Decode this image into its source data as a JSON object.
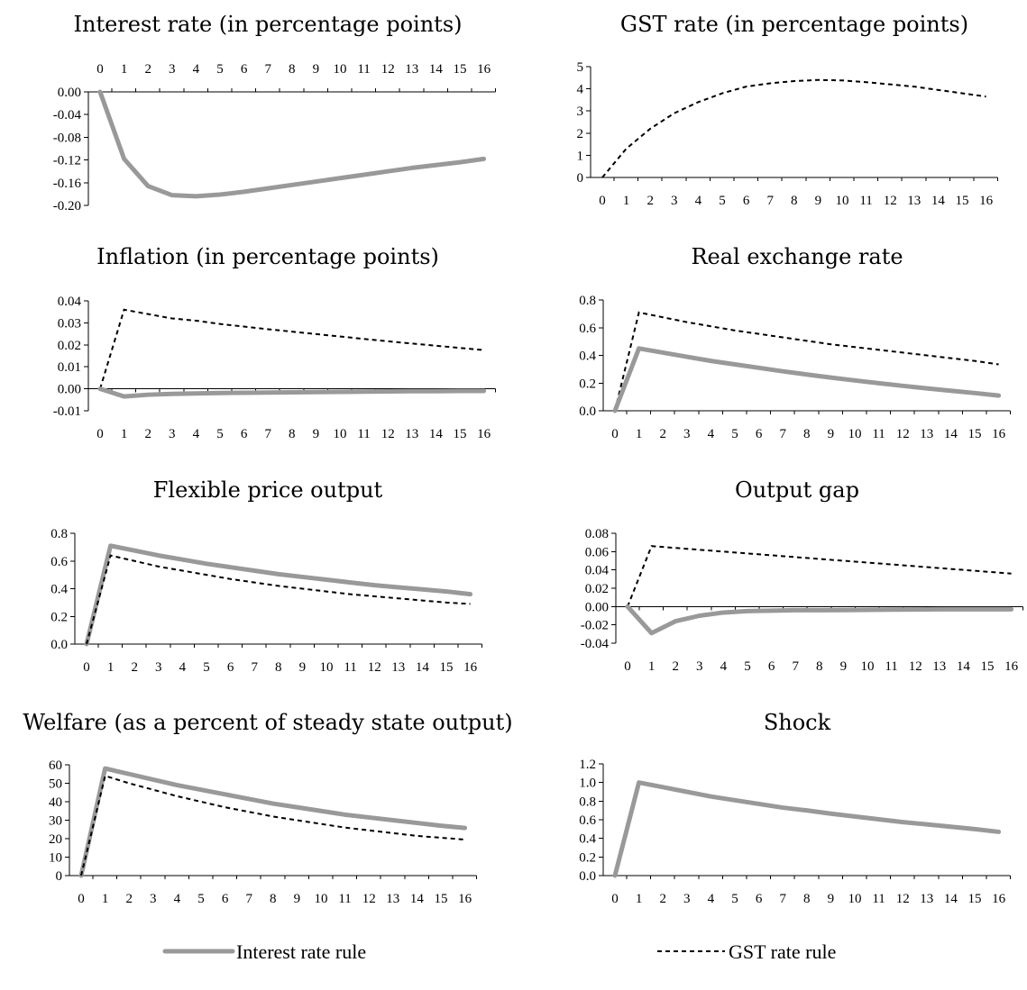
{
  "colors": {
    "interest_rate_rule": "#999999",
    "gst_rate_rule": "#000000"
  },
  "legend": [
    {
      "key": "interest",
      "label": "Interest rate rule",
      "style": "solid-gray"
    },
    {
      "key": "gst",
      "label": "GST rate rule",
      "style": "dashed-black"
    }
  ],
  "chart_data": [
    {
      "type": "line",
      "title": "Interest rate (in percentage points)",
      "x": [
        0,
        1,
        2,
        3,
        4,
        5,
        6,
        7,
        8,
        9,
        10,
        11,
        12,
        13,
        14,
        15,
        16
      ],
      "xlabel": "",
      "ylabel": "",
      "ylim": [
        -0.2,
        0.0
      ],
      "yticks": [
        "0.00",
        "-0.04",
        "-0.08",
        "-0.12",
        "-0.16",
        "-0.20"
      ],
      "xaxis_position": "top",
      "series": [
        {
          "key": "interest",
          "values": [
            0,
            -0.118,
            -0.166,
            -0.182,
            -0.184,
            -0.181,
            -0.176,
            -0.17,
            -0.164,
            -0.158,
            -0.152,
            -0.146,
            -0.14,
            -0.134,
            -0.129,
            -0.124,
            -0.118
          ]
        }
      ]
    },
    {
      "type": "line",
      "title": "GST rate (in percentage points)",
      "x": [
        0,
        1,
        2,
        3,
        4,
        5,
        6,
        7,
        8,
        9,
        10,
        11,
        12,
        13,
        14,
        15,
        16
      ],
      "xlabel": "",
      "ylabel": "",
      "ylim": [
        0,
        5
      ],
      "yticks": [
        "0",
        "1",
        "2",
        "3",
        "4",
        "5"
      ],
      "series": [
        {
          "key": "gst",
          "values": [
            0,
            1.3,
            2.2,
            2.9,
            3.4,
            3.8,
            4.1,
            4.25,
            4.35,
            4.4,
            4.38,
            4.3,
            4.2,
            4.1,
            3.95,
            3.8,
            3.65
          ]
        }
      ]
    },
    {
      "type": "line",
      "title": "Inflation (in percentage points)",
      "x": [
        0,
        1,
        2,
        3,
        4,
        5,
        6,
        7,
        8,
        9,
        10,
        11,
        12,
        13,
        14,
        15,
        16
      ],
      "xlabel": "",
      "ylabel": "",
      "ylim": [
        -0.01,
        0.04
      ],
      "yticks": [
        "0.04",
        "0.03",
        "0.02",
        "0.01",
        "0.00",
        "-0.01"
      ],
      "series": [
        {
          "key": "gst",
          "values": [
            0,
            0.036,
            0.034,
            0.032,
            0.031,
            0.0295,
            0.0283,
            0.0271,
            0.026,
            0.0249,
            0.0238,
            0.0227,
            0.0216,
            0.0206,
            0.0196,
            0.0186,
            0.0176
          ]
        },
        {
          "key": "interest",
          "values": [
            0,
            -0.0035,
            -0.0027,
            -0.0023,
            -0.0021,
            -0.0019,
            -0.0018,
            -0.0017,
            -0.0016,
            -0.0015,
            -0.0014,
            -0.0013,
            -0.0012,
            -0.0011,
            -0.0011,
            -0.001,
            -0.001
          ]
        }
      ]
    },
    {
      "type": "line",
      "title": "Real exchange rate",
      "x": [
        0,
        1,
        2,
        3,
        4,
        5,
        6,
        7,
        8,
        9,
        10,
        11,
        12,
        13,
        14,
        15,
        16
      ],
      "xlabel": "",
      "ylabel": "",
      "ylim": [
        0,
        0.8
      ],
      "yticks": [
        "0.8",
        "0.6",
        "0.4",
        "0.2",
        "0.0"
      ],
      "series": [
        {
          "key": "gst",
          "values": [
            0,
            0.71,
            0.675,
            0.64,
            0.61,
            0.58,
            0.555,
            0.53,
            0.505,
            0.48,
            0.46,
            0.44,
            0.42,
            0.4,
            0.38,
            0.36,
            0.335
          ]
        },
        {
          "key": "interest",
          "values": [
            0,
            0.45,
            0.42,
            0.39,
            0.36,
            0.335,
            0.31,
            0.285,
            0.262,
            0.24,
            0.219,
            0.199,
            0.18,
            0.162,
            0.145,
            0.128,
            0.11
          ]
        }
      ]
    },
    {
      "type": "line",
      "title": "Flexible price output",
      "x": [
        0,
        1,
        2,
        3,
        4,
        5,
        6,
        7,
        8,
        9,
        10,
        11,
        12,
        13,
        14,
        15,
        16
      ],
      "xlabel": "",
      "ylabel": "",
      "ylim": [
        0,
        0.8
      ],
      "yticks": [
        "0.8",
        "0.6",
        "0.4",
        "0.2",
        "0.0"
      ],
      "series": [
        {
          "key": "interest",
          "values": [
            0,
            0.71,
            0.675,
            0.64,
            0.61,
            0.58,
            0.555,
            0.53,
            0.505,
            0.485,
            0.465,
            0.445,
            0.425,
            0.41,
            0.395,
            0.38,
            0.36
          ]
        },
        {
          "key": "gst",
          "values": [
            0,
            0.64,
            0.6,
            0.56,
            0.53,
            0.5,
            0.47,
            0.445,
            0.42,
            0.4,
            0.38,
            0.36,
            0.345,
            0.33,
            0.315,
            0.3,
            0.29
          ]
        }
      ]
    },
    {
      "type": "line",
      "title": "Output gap",
      "x": [
        0,
        1,
        2,
        3,
        4,
        5,
        6,
        7,
        8,
        9,
        10,
        11,
        12,
        13,
        14,
        15,
        16
      ],
      "xlabel": "",
      "ylabel": "",
      "ylim": [
        -0.04,
        0.08
      ],
      "yticks": [
        "0.08",
        "0.06",
        "0.04",
        "0.02",
        "0.00",
        "-0.02",
        "-0.04"
      ],
      "series": [
        {
          "key": "gst",
          "values": [
            0,
            0.066,
            0.064,
            0.062,
            0.06,
            0.058,
            0.056,
            0.054,
            0.052,
            0.05,
            0.048,
            0.046,
            0.044,
            0.042,
            0.04,
            0.038,
            0.036
          ]
        },
        {
          "key": "interest",
          "values": [
            0,
            -0.029,
            -0.016,
            -0.01,
            -0.0065,
            -0.005,
            -0.0045,
            -0.004,
            -0.004,
            -0.0038,
            -0.0036,
            -0.0034,
            -0.0032,
            -0.003,
            -0.003,
            -0.003,
            -0.003
          ]
        }
      ]
    },
    {
      "type": "line",
      "title": "Welfare (as a percent of steady state output)",
      "x": [
        0,
        1,
        2,
        3,
        4,
        5,
        6,
        7,
        8,
        9,
        10,
        11,
        12,
        13,
        14,
        15,
        16
      ],
      "xlabel": "",
      "ylabel": "",
      "ylim": [
        0,
        60
      ],
      "yticks": [
        "60",
        "50",
        "40",
        "30",
        "20",
        "10",
        "0"
      ],
      "series": [
        {
          "key": "interest",
          "values": [
            0,
            58,
            55,
            52,
            49,
            46.5,
            44,
            41.5,
            39,
            37,
            35,
            33,
            31.5,
            30,
            28.5,
            27,
            25.8
          ]
        },
        {
          "key": "gst",
          "values": [
            0,
            54,
            50,
            46.5,
            43,
            40,
            37,
            34.5,
            32,
            30,
            28,
            26,
            24.5,
            23,
            21.5,
            20.5,
            19.5
          ]
        }
      ]
    },
    {
      "type": "line",
      "title": "Shock",
      "x": [
        0,
        1,
        2,
        3,
        4,
        5,
        6,
        7,
        8,
        9,
        10,
        11,
        12,
        13,
        14,
        15,
        16
      ],
      "xlabel": "",
      "ylabel": "",
      "ylim": [
        0,
        1.2
      ],
      "yticks": [
        "1.2",
        "1.0",
        "0.8",
        "0.6",
        "0.4",
        "0.2",
        "0.0"
      ],
      "series": [
        {
          "key": "gst",
          "values": [
            0,
            0.99,
            0.94,
            0.89,
            0.84,
            0.8,
            0.76,
            0.72,
            0.69,
            0.66,
            0.63,
            0.6,
            0.57,
            0.55,
            0.52,
            0.5,
            0.47
          ]
        },
        {
          "key": "interest",
          "values": [
            0,
            1.0,
            0.95,
            0.9,
            0.85,
            0.81,
            0.77,
            0.73,
            0.7,
            0.665,
            0.635,
            0.605,
            0.575,
            0.55,
            0.525,
            0.5,
            0.47
          ]
        }
      ]
    }
  ]
}
